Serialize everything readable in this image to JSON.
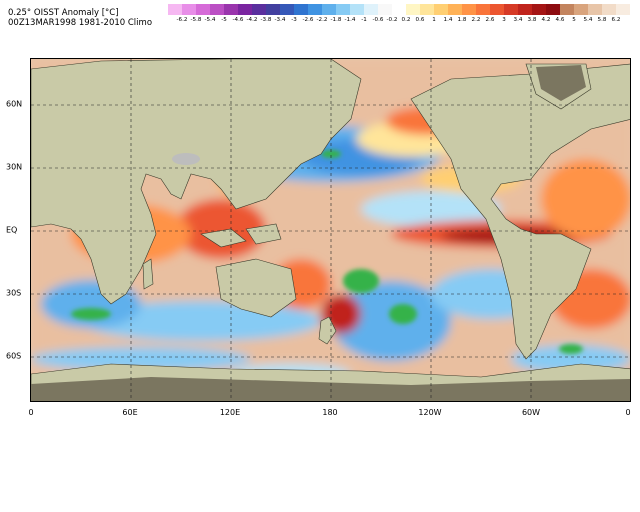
{
  "title": {
    "line1": "0.25° OISST Anomaly [°C]",
    "line2": "00Z13MAR1998  1981-2010 Climo"
  },
  "colorbar": {
    "labels": [
      "-6.2",
      "-5.8",
      "-5.4",
      "-5",
      "-4.6",
      "-4.2",
      "-3.8",
      "-3.4",
      "-3",
      "-2.6",
      "-2.2",
      "-1.8",
      "-1.4",
      "-1",
      "-0.6",
      "-0.2",
      "0.2",
      "0.6",
      "1",
      "1.4",
      "1.8",
      "2.2",
      "2.6",
      "3",
      "3.4",
      "3.8",
      "4.2",
      "4.6",
      "5",
      "5.4",
      "5.8",
      "6.2"
    ],
    "colors": [
      "#f6b8f2",
      "#e88ee8",
      "#d66bd8",
      "#bb4fc4",
      "#9a35ad",
      "#7a25a0",
      "#5a2f9e",
      "#423f9f",
      "#3558b8",
      "#2f74d0",
      "#3f93e2",
      "#5fb0ec",
      "#86cbf4",
      "#b4e2f8",
      "#dff2fb",
      "#f8f8f8",
      "#ffffff",
      "#fff6c4",
      "#ffe59a",
      "#ffcf72",
      "#ffb257",
      "#ff9346",
      "#f9743a",
      "#ec5630",
      "#d63a26",
      "#c0241d",
      "#a51515",
      "#8d0c10",
      "#c3845e",
      "#d9a47d",
      "#e8c5a8",
      "#f2dcc8",
      "#f8ece0"
    ],
    "data_labels": [
      "-6.2",
      "-5.8",
      "-5.4",
      "-5",
      "-4.6",
      "-4.2",
      "-3.8",
      "-3.4",
      "-3",
      "-2.6",
      "-2.2",
      "-1.8",
      "-1.4",
      "-1",
      "-0.6",
      "-0.2",
      "0.2",
      "0.6",
      "1",
      "1.4",
      "1.8",
      "2.2",
      "2.6",
      "3",
      "3.4",
      "3.8",
      "4.2",
      "4.6",
      "5",
      "5.4",
      "5.8",
      "6.2"
    ]
  },
  "axes": {
    "y_labels": [
      "60N",
      "30N",
      "EQ",
      "30S",
      "60S"
    ],
    "x_labels": [
      "0",
      "60E",
      "120E",
      "180",
      "120W",
      "60W",
      "0"
    ]
  },
  "colors": {
    "land": "#c9caa7",
    "ice": "#7b7660",
    "warm_strong": "#c0241d",
    "warm": "#ff9346",
    "cool": "#5fb0ec",
    "cool_strong": "#3558b8",
    "green_anomaly": "#34b24a"
  }
}
